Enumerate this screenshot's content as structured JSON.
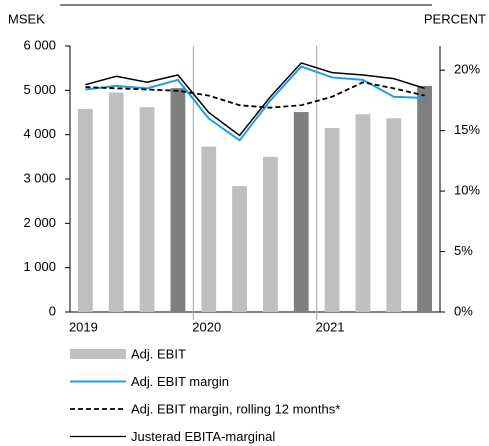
{
  "chart_data": {
    "type": "combo",
    "y_label": "MSEK",
    "y2_label": "PERCENT",
    "categories": [
      "2019",
      null,
      null,
      null,
      "2020",
      null,
      null,
      null,
      "2021",
      null,
      null,
      null
    ],
    "ylim": [
      0,
      6000
    ],
    "yticks": [
      0,
      {
        "value": 1000,
        "label": "1 000"
      },
      {
        "value": 2000,
        "label": "2 000"
      },
      {
        "value": 3000,
        "label": "3 000"
      },
      {
        "value": 4000,
        "label": "4 000"
      },
      {
        "value": 5000,
        "label": "5 000"
      },
      {
        "value": 6000,
        "label": "6 000"
      }
    ],
    "y2lim": [
      0,
      22
    ],
    "y2ticks": [
      {
        "value": 0,
        "label": "0%"
      },
      {
        "value": 5,
        "label": "5%"
      },
      {
        "value": 10,
        "label": "10%"
      },
      {
        "value": 15,
        "label": "15%"
      },
      {
        "value": 20,
        "label": "20%"
      }
    ],
    "grid": false,
    "series": [
      {
        "name": "Adj. EBIT",
        "type": "bar",
        "axis": "y",
        "color": "#bfbfbf",
        "colors": [
          "#bfbfbf",
          "#bfbfbf",
          "#bfbfbf",
          "#7f7f7f",
          "#bfbfbf",
          "#bfbfbf",
          "#bfbfbf",
          "#7f7f7f",
          "#bfbfbf",
          "#bfbfbf",
          "#bfbfbf",
          "#7f7f7f"
        ],
        "values": [
          4580,
          4950,
          4620,
          5050,
          3730,
          2840,
          3500,
          4510,
          4150,
          4460,
          4370,
          5100
        ]
      },
      {
        "name": "Adj. EBIT margin",
        "type": "line",
        "axis": "y2",
        "color": "#1ea0e6",
        "dash": false,
        "values": [
          18.4,
          18.7,
          18.5,
          19.2,
          16.0,
          14.2,
          17.5,
          20.3,
          19.4,
          19.2,
          17.8,
          17.7
        ]
      },
      {
        "name": "Adj. EBIT margin, rolling 12 months*",
        "type": "line",
        "axis": "y2",
        "color": "#000000",
        "dash": true,
        "values": [
          18.6,
          18.5,
          18.4,
          18.3,
          17.9,
          17.1,
          16.9,
          17.1,
          17.8,
          19.0,
          18.5,
          17.9
        ]
      },
      {
        "name": "Justerad EBITA-marginal",
        "type": "line",
        "axis": "y2",
        "color": "#000000",
        "dash": false,
        "values": [
          18.8,
          19.5,
          19.0,
          19.6,
          16.5,
          14.6,
          17.8,
          20.6,
          19.8,
          19.6,
          19.3,
          18.5
        ]
      }
    ]
  }
}
